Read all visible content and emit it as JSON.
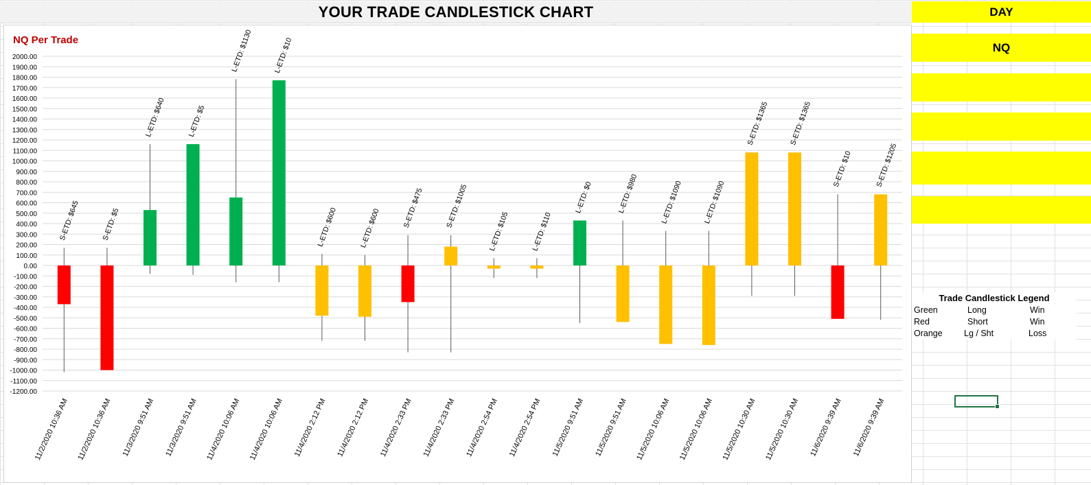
{
  "sheet": {
    "title": "YOUR TRADE CANDLESTICK CHART"
  },
  "panel": {
    "day_label": "DAY",
    "symbol": "NQ",
    "legend": {
      "title": "Trade Candlestick Legend",
      "rows": [
        {
          "color": "Green",
          "direction": "Long",
          "outcome": "Win"
        },
        {
          "color": "Red",
          "direction": "Short",
          "outcome": "Win"
        },
        {
          "color": "Orange",
          "direction": "Lg / Sht",
          "outcome": "Loss"
        }
      ]
    }
  },
  "colors": {
    "green": "#00b050",
    "red": "#ff0000",
    "orange": "#ffc000",
    "title_red": "#c00000",
    "yellow": "#ffff00"
  },
  "chart_data": {
    "type": "candlestick",
    "title": "NQ Per Trade",
    "ylim": [
      -1200,
      2000
    ],
    "ytick_step": 100,
    "grid": true,
    "categories": [
      "11/2/2020 10:36 AM",
      "11/2/2020 10:36 AM",
      "11/3/2020 9:51 AM",
      "11/3/2020 9:51 AM",
      "11/4/2020 10:06 AM",
      "11/4/2020 10:06 AM",
      "11/4/2020 2:12 PM",
      "11/4/2020 2:12 PM",
      "11/4/2020 2:33 PM",
      "11/4/2020 2:33 PM",
      "11/4/2020 2:54 PM",
      "11/4/2020 2:54 PM",
      "11/5/2020 9:51 AM",
      "11/5/2020 9:51 AM",
      "11/5/2020 10:06 AM",
      "11/5/2020 10:06 AM",
      "11/5/2020 10:30 AM",
      "11/5/2020 10:30 AM",
      "11/6/2020 9:39 AM",
      "11/6/2020 9:39 AM"
    ],
    "candles": [
      {
        "open": 0,
        "close": -370,
        "high": 170,
        "low": -1020,
        "color": "red",
        "label": "S-ETD: $645"
      },
      {
        "open": 0,
        "close": -1000,
        "high": 170,
        "low": -1000,
        "color": "red",
        "label": "S-ETD: $5"
      },
      {
        "open": 0,
        "close": 530,
        "high": 1160,
        "low": -80,
        "color": "green",
        "label": "L-ETD: $640"
      },
      {
        "open": 0,
        "close": 1160,
        "high": 1160,
        "low": -90,
        "color": "green",
        "label": "L-ETD: $5"
      },
      {
        "open": 0,
        "close": 650,
        "high": 1780,
        "low": -160,
        "color": "green",
        "label": "L-ETD: $1130"
      },
      {
        "open": 0,
        "close": 1770,
        "high": 1770,
        "low": -160,
        "color": "green",
        "label": "L-ETD: $10"
      },
      {
        "open": 0,
        "close": -480,
        "high": 110,
        "low": -720,
        "color": "orange",
        "label": "L-ETD: $600"
      },
      {
        "open": 0,
        "close": -490,
        "high": 100,
        "low": -720,
        "color": "orange",
        "label": "L-ETD: $600"
      },
      {
        "open": 0,
        "close": -350,
        "high": 290,
        "low": -830,
        "color": "red",
        "label": "S-ETD: $475"
      },
      {
        "open": 0,
        "close": 180,
        "high": 290,
        "low": -830,
        "color": "orange",
        "label": "S-ETD: $1005"
      },
      {
        "open": 0,
        "close": -30,
        "high": 70,
        "low": -120,
        "color": "orange",
        "label": "L-ETD: $105"
      },
      {
        "open": 0,
        "close": -30,
        "high": 70,
        "low": -120,
        "color": "orange",
        "label": "L-ETD: $110"
      },
      {
        "open": 0,
        "close": 430,
        "high": 430,
        "low": -550,
        "color": "green",
        "label": "L-ETD: $0"
      },
      {
        "open": 0,
        "close": -540,
        "high": 430,
        "low": -540,
        "color": "orange",
        "label": "L-ETD: $980"
      },
      {
        "open": 0,
        "close": -750,
        "high": 330,
        "low": -750,
        "color": "orange",
        "label": "L-ETD: $1090"
      },
      {
        "open": 0,
        "close": -760,
        "high": 330,
        "low": -760,
        "color": "orange",
        "label": "L-ETD: $1090"
      },
      {
        "open": 0,
        "close": 1080,
        "high": 1080,
        "low": -290,
        "color": "orange",
        "label": "S-ETD: $1365"
      },
      {
        "open": 0,
        "close": 1080,
        "high": 1080,
        "low": -290,
        "color": "orange",
        "label": "S-ETD: $1365"
      },
      {
        "open": 0,
        "close": -510,
        "high": 680,
        "low": -510,
        "color": "red",
        "label": "S-ETD: $10"
      },
      {
        "open": 0,
        "close": 680,
        "high": 680,
        "low": -520,
        "color": "orange",
        "label": "S-ETD: $1205"
      }
    ]
  }
}
